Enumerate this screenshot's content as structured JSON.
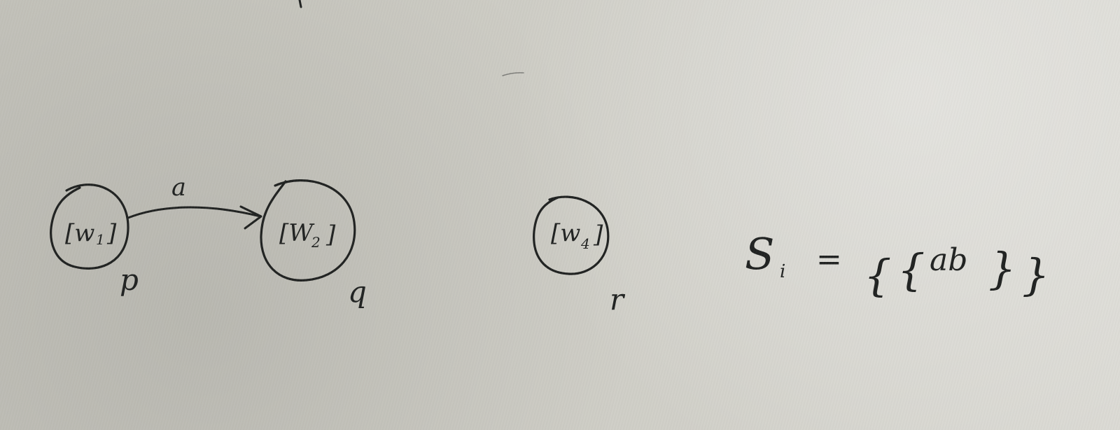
{
  "diagram": {
    "states": [
      {
        "bracket_text": "[w",
        "subscript": "1",
        "close": "]",
        "name": "p"
      },
      {
        "bracket_text": "[W",
        "subscript": "2",
        "close": "]",
        "name": "q"
      },
      {
        "bracket_text": "[w",
        "subscript": "4",
        "close": "]",
        "name": "r"
      }
    ],
    "edges": [
      {
        "label": "a"
      }
    ],
    "formula": {
      "symbol": "S",
      "subscript": "i",
      "equals": "=",
      "open_outer": "{",
      "open_inner": "{",
      "body": "ab",
      "close_inner": "}",
      "close_outer": "}"
    }
  }
}
